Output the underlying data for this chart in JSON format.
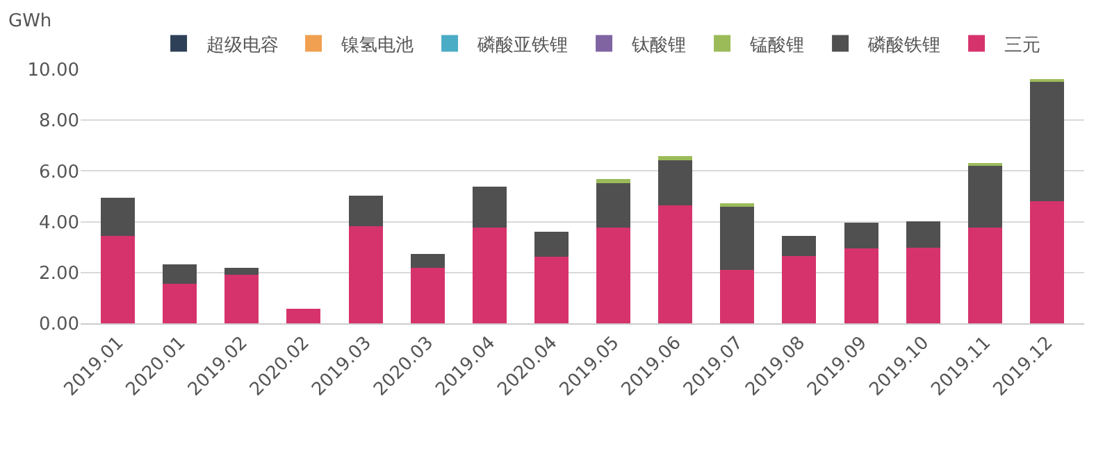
{
  "chart_data": {
    "type": "bar",
    "stacked": true,
    "ylabel": "GWh",
    "categories": [
      "2019.01",
      "2020.01",
      "2019.02",
      "2020.02",
      "2019.03",
      "2020.03",
      "2019.04",
      "2020.04",
      "2019.05",
      "2019.06",
      "2019.07",
      "2019.08",
      "2019.09",
      "2019.10",
      "2019.11",
      "2019.12"
    ],
    "series": [
      {
        "name": "三元",
        "color": "#d6336c",
        "values": [
          3.45,
          1.57,
          1.92,
          0.57,
          3.82,
          2.19,
          3.78,
          2.61,
          3.78,
          4.65,
          2.11,
          2.66,
          2.94,
          2.97,
          3.78,
          4.82
        ]
      },
      {
        "name": "磷酸铁锂",
        "color": "#505050",
        "values": [
          1.49,
          0.75,
          0.27,
          0,
          1.22,
          0.54,
          1.61,
          1.0,
          1.73,
          1.76,
          2.52,
          0.79,
          1.03,
          1.04,
          2.41,
          4.69
        ]
      },
      {
        "name": "锰酸锂",
        "color": "#9bbb59",
        "values": [
          0,
          0,
          0,
          0,
          0,
          0,
          0,
          0,
          0.18,
          0.17,
          0.09,
          0,
          0,
          0,
          0.12,
          0.1
        ]
      },
      {
        "name": "钛酸锂",
        "color": "#8064a2",
        "values": [
          0,
          0,
          0,
          0,
          0,
          0,
          0,
          0,
          0,
          0,
          0,
          0,
          0,
          0,
          0,
          0
        ]
      },
      {
        "name": "磷酸亚铁锂",
        "color": "#4bacc6",
        "values": [
          0,
          0,
          0,
          0,
          0,
          0,
          0,
          0,
          0,
          0,
          0,
          0,
          0,
          0,
          0,
          0
        ]
      },
      {
        "name": "镍氢电池",
        "color": "#f0a050",
        "values": [
          0,
          0,
          0,
          0,
          0,
          0,
          0,
          0,
          0,
          0,
          0,
          0,
          0,
          0,
          0,
          0
        ]
      },
      {
        "name": "超级电容",
        "color": "#2e4057",
        "values": [
          0,
          0,
          0,
          0,
          0,
          0,
          0,
          0,
          0,
          0,
          0,
          0,
          0,
          0,
          0,
          0
        ]
      }
    ],
    "ylim": [
      0,
      10
    ],
    "yticks": [
      {
        "value": 0,
        "label": "0.00"
      },
      {
        "value": 2,
        "label": "2.00"
      },
      {
        "value": 4,
        "label": "4.00"
      },
      {
        "value": 6,
        "label": "6.00"
      },
      {
        "value": 8,
        "label": "8.00"
      },
      {
        "value": 10,
        "label": "10.00"
      }
    ],
    "grid": "y",
    "legend": "top"
  }
}
